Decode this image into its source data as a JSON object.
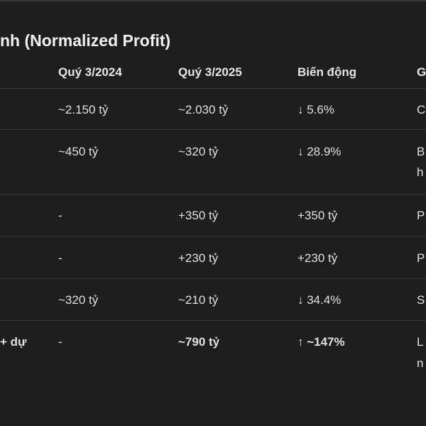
{
  "heading": "nh (Normalized Profit)",
  "columns": [
    "Quý 3/2024",
    "Quý 3/2025",
    "Biến động",
    "G"
  ],
  "rows": [
    {
      "c0": "",
      "c1": "~2.150 tỷ",
      "c2": "~2.030 tỷ",
      "c3": "↓ 5.6%",
      "c4a": "C",
      "c4b": ""
    },
    {
      "c0": "",
      "c1": "~450 tỷ",
      "c2": "~320 tỷ",
      "c3": "↓ 28.9%",
      "c4a": "B",
      "c4b": "h"
    },
    {
      "c0": "",
      "c1": "-",
      "c2": "+350 tỷ",
      "c3": "+350 tỷ",
      "c4a": "P",
      "c4b": ""
    },
    {
      "c0": "",
      "c1": "-",
      "c2": "+230 tỷ",
      "c3": "+230 tỷ",
      "c4a": "P",
      "c4b": ""
    },
    {
      "c0": "",
      "c1": "~320 tỷ",
      "c2": "~210 tỷ",
      "c3": "↓ 34.4%",
      "c4a": "S",
      "c4b": ""
    },
    {
      "c0": "+ dự",
      "c1": "-",
      "c2": "~790 tỷ",
      "c3": "↑ ~147%",
      "c4a": "L",
      "c4b": "n"
    }
  ]
}
